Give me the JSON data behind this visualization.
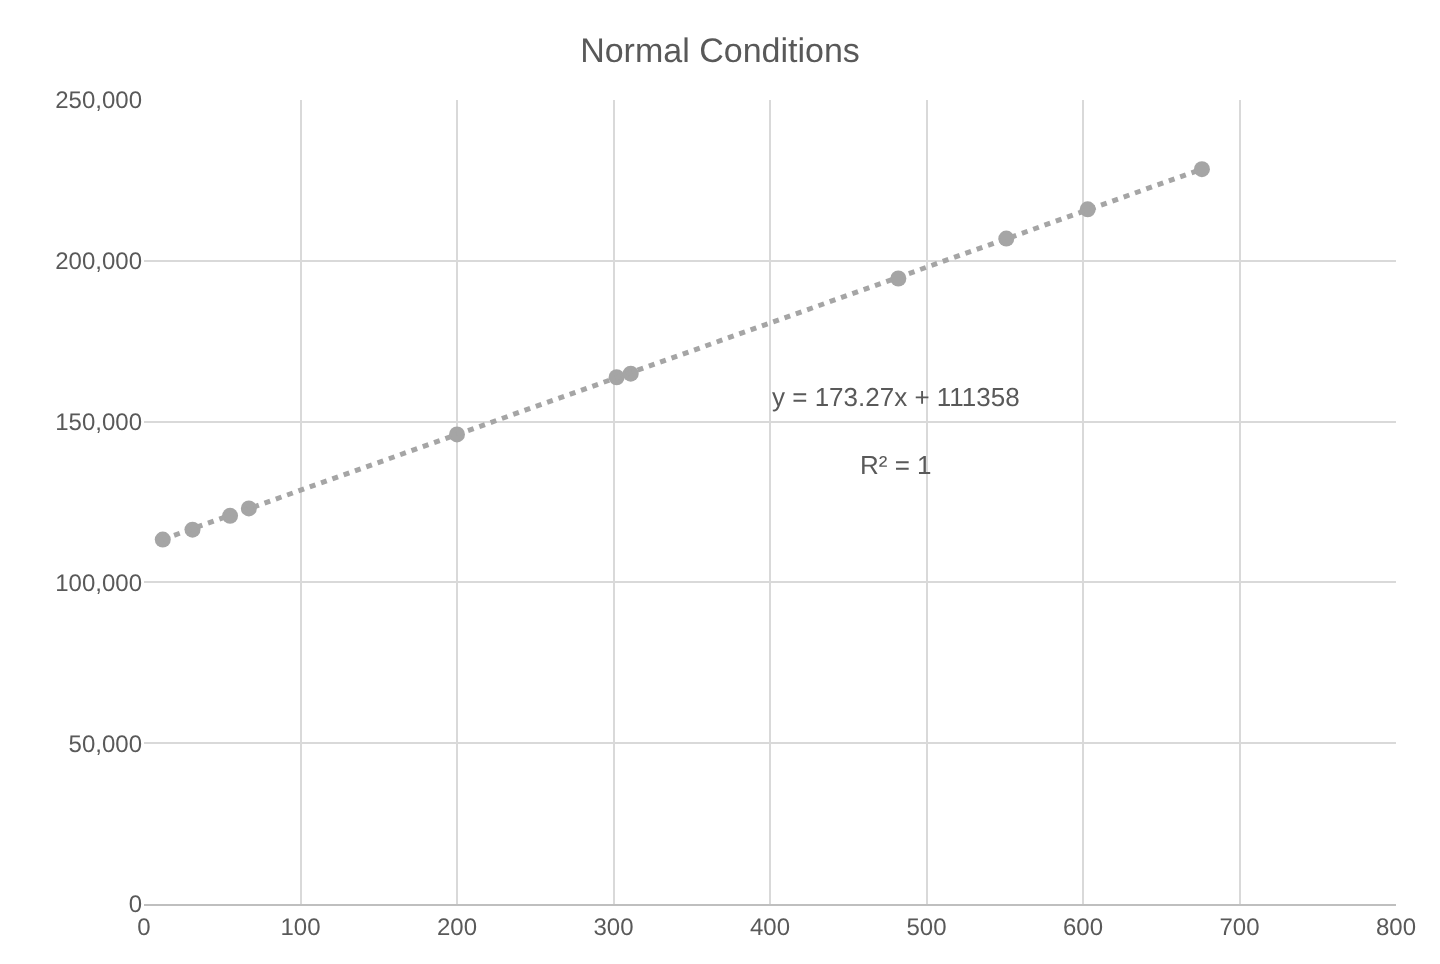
{
  "chart_data": {
    "type": "scatter",
    "title": "Normal Conditions",
    "series": [
      {
        "color": "#a5a5a5",
        "marker": "circle",
        "x": [
          12,
          31,
          55,
          67,
          200,
          302,
          311,
          482,
          551,
          603,
          676
        ],
        "values": [
          113300,
          116400,
          120700,
          123000,
          146000,
          163800,
          164900,
          194500,
          206900,
          216000,
          228500
        ]
      },
      {
        "type": "line",
        "color": "#a5a5a5",
        "line_style": "dotted",
        "marker": "none",
        "x": [
          12,
          676
        ],
        "values": [
          113400,
          228500
        ]
      }
    ],
    "annotations": [
      "y = 173.27x + 111358",
      "R² = 1"
    ],
    "xlim": [
      0,
      800
    ],
    "xticks": [
      0,
      100,
      200,
      300,
      400,
      500,
      600,
      700,
      800
    ],
    "ylim": [
      0,
      250000
    ],
    "yticks": [
      {
        "value": 0,
        "label": "0"
      },
      {
        "value": 50000,
        "label": "50,000"
      },
      {
        "value": 100000,
        "label": "100,000"
      },
      {
        "value": 150000,
        "label": "150,000"
      },
      {
        "value": 200000,
        "label": "200,000"
      },
      {
        "value": 250000,
        "label": "250,000"
      }
    ],
    "grid": true
  }
}
